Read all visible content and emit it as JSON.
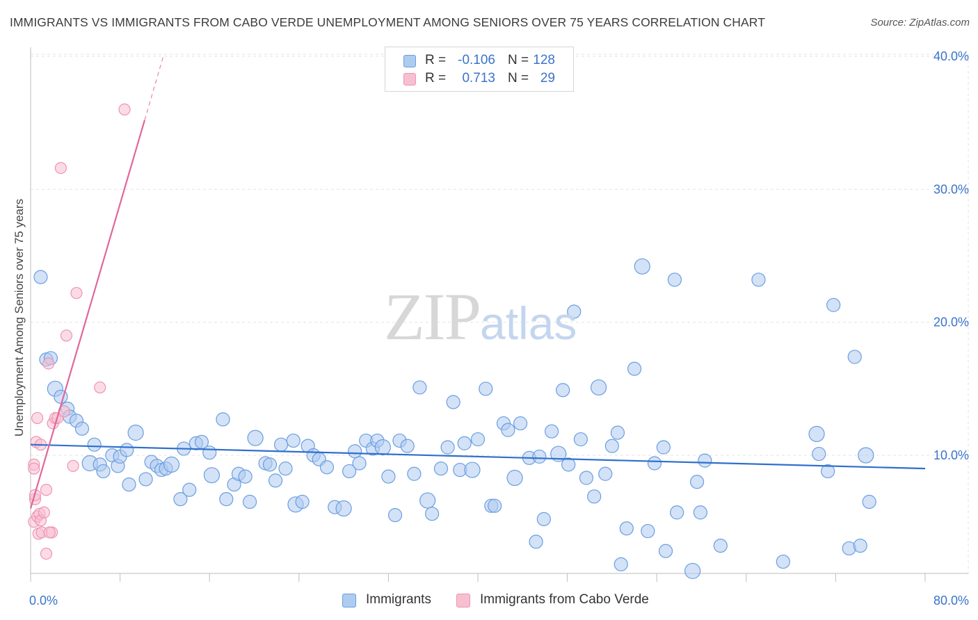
{
  "title": "IMMIGRANTS VS IMMIGRANTS FROM CABO VERDE UNEMPLOYMENT AMONG SENIORS OVER 75 YEARS CORRELATION CHART",
  "source": "Source: ZipAtlas.com",
  "watermark": {
    "zip": "ZIP",
    "atlas": "atlas"
  },
  "legend": {
    "r_label": "R =",
    "n_label": "N =",
    "items": [
      {
        "r": "-0.106",
        "n": "128"
      },
      {
        "r": "0.713",
        "n": "29"
      }
    ]
  },
  "colors": {
    "immigrants_fill": "#aecbf0",
    "immigrants_stroke": "#6a9ee0",
    "immigrants_line": "#2f6fcd",
    "caboverde_fill": "#f7c0d1",
    "caboverde_stroke": "#ee93b0",
    "caboverde_line": "#e0679a",
    "tick_label": "#3a73c9",
    "grid": "#e3e3e3"
  },
  "chart_data": {
    "type": "scatter",
    "title": "IMMIGRANTS VS IMMIGRANTS FROM CABO VERDE UNEMPLOYMENT AMONG SENIORS OVER 75 YEARS CORRELATION CHART",
    "xlabel": "",
    "ylabel": "Unemployment Among Seniors over 75 years",
    "xlim": [
      0,
      80
    ],
    "ylim": [
      0,
      42
    ],
    "x_ticks": [
      0,
      80
    ],
    "x_tick_labels": [
      "0.0%",
      "80.0%"
    ],
    "y_ticks": [
      10,
      20,
      30,
      40
    ],
    "y_tick_labels": [
      "10.0%",
      "20.0%",
      "30.0%",
      "40.0%"
    ],
    "grid": true,
    "legend_position": "bottom",
    "series": [
      {
        "name": "Immigrants",
        "points": [
          [
            0.9,
            23.4
          ],
          [
            1.4,
            17.2
          ],
          [
            1.8,
            17.3
          ],
          [
            2.2,
            15.0
          ],
          [
            2.7,
            14.4
          ],
          [
            3.3,
            13.5
          ],
          [
            3.5,
            12.9
          ],
          [
            4.1,
            12.6
          ],
          [
            4.6,
            12.0
          ],
          [
            5.7,
            10.8
          ],
          [
            5.3,
            9.4
          ],
          [
            6.2,
            9.3
          ],
          [
            6.5,
            8.8
          ],
          [
            7.3,
            10.0
          ],
          [
            7.8,
            9.2
          ],
          [
            8.0,
            9.9
          ],
          [
            8.6,
            10.4
          ],
          [
            9.4,
            11.7
          ],
          [
            8.8,
            7.8
          ],
          [
            10.3,
            8.2
          ],
          [
            10.8,
            9.5
          ],
          [
            11.3,
            9.2
          ],
          [
            11.7,
            8.9
          ],
          [
            12.1,
            9.0
          ],
          [
            12.6,
            9.3
          ],
          [
            13.4,
            6.7
          ],
          [
            13.7,
            10.5
          ],
          [
            14.2,
            7.4
          ],
          [
            14.8,
            10.9
          ],
          [
            15.3,
            11.0
          ],
          [
            16.0,
            10.2
          ],
          [
            16.2,
            8.5
          ],
          [
            17.2,
            12.7
          ],
          [
            17.5,
            6.7
          ],
          [
            18.2,
            7.8
          ],
          [
            18.6,
            8.6
          ],
          [
            19.2,
            8.4
          ],
          [
            19.6,
            6.5
          ],
          [
            20.1,
            11.3
          ],
          [
            21.0,
            9.4
          ],
          [
            21.4,
            9.3
          ],
          [
            21.9,
            8.1
          ],
          [
            22.4,
            10.8
          ],
          [
            22.8,
            9.0
          ],
          [
            23.5,
            11.1
          ],
          [
            23.7,
            6.3
          ],
          [
            24.3,
            6.5
          ],
          [
            24.8,
            10.7
          ],
          [
            25.3,
            10.0
          ],
          [
            25.8,
            9.7
          ],
          [
            26.5,
            9.1
          ],
          [
            27.2,
            6.1
          ],
          [
            28.0,
            6.0
          ],
          [
            28.5,
            8.8
          ],
          [
            29.0,
            10.3
          ],
          [
            29.4,
            9.4
          ],
          [
            30.0,
            11.1
          ],
          [
            30.6,
            10.5
          ],
          [
            31.0,
            11.1
          ],
          [
            31.5,
            10.6
          ],
          [
            32.0,
            8.4
          ],
          [
            32.6,
            5.5
          ],
          [
            33.0,
            11.1
          ],
          [
            33.7,
            10.7
          ],
          [
            34.3,
            8.6
          ],
          [
            34.8,
            15.1
          ],
          [
            35.5,
            6.6
          ],
          [
            35.9,
            5.6
          ],
          [
            36.7,
            9.0
          ],
          [
            37.3,
            10.6
          ],
          [
            37.8,
            14.0
          ],
          [
            38.4,
            8.9
          ],
          [
            38.8,
            10.9
          ],
          [
            39.5,
            8.9
          ],
          [
            40.0,
            11.2
          ],
          [
            40.7,
            15.0
          ],
          [
            41.2,
            6.2
          ],
          [
            41.5,
            6.2
          ],
          [
            42.3,
            12.4
          ],
          [
            42.7,
            11.9
          ],
          [
            43.3,
            8.3
          ],
          [
            43.8,
            12.4
          ],
          [
            44.6,
            9.8
          ],
          [
            45.2,
            3.5
          ],
          [
            45.5,
            9.9
          ],
          [
            45.9,
            5.2
          ],
          [
            46.6,
            11.8
          ],
          [
            47.2,
            10.1
          ],
          [
            47.6,
            14.9
          ],
          [
            48.1,
            9.3
          ],
          [
            48.6,
            20.8
          ],
          [
            49.2,
            11.2
          ],
          [
            49.7,
            8.3
          ],
          [
            50.4,
            6.9
          ],
          [
            50.8,
            15.1
          ],
          [
            51.4,
            8.6
          ],
          [
            52.0,
            10.7
          ],
          [
            52.5,
            11.7
          ],
          [
            52.8,
            1.8
          ],
          [
            53.3,
            4.5
          ],
          [
            54.0,
            16.5
          ],
          [
            54.7,
            24.2
          ],
          [
            55.2,
            4.3
          ],
          [
            55.8,
            9.4
          ],
          [
            56.6,
            10.6
          ],
          [
            56.8,
            2.8
          ],
          [
            57.6,
            23.2
          ],
          [
            57.8,
            5.7
          ],
          [
            59.2,
            1.3
          ],
          [
            59.6,
            8.0
          ],
          [
            59.9,
            5.7
          ],
          [
            60.3,
            9.6
          ],
          [
            61.7,
            3.2
          ],
          [
            65.1,
            23.2
          ],
          [
            67.3,
            2.0
          ],
          [
            70.3,
            11.6
          ],
          [
            70.5,
            10.1
          ],
          [
            71.3,
            8.8
          ],
          [
            71.8,
            21.3
          ],
          [
            73.2,
            3.0
          ],
          [
            73.7,
            17.4
          ],
          [
            74.2,
            3.2
          ],
          [
            74.7,
            10.0
          ],
          [
            75.0,
            6.5
          ]
        ],
        "trend": {
          "x": [
            0,
            80
          ],
          "y": [
            10.8,
            9.0
          ]
        }
      },
      {
        "name": "Immigrants from Cabo Verde",
        "points": [
          [
            0.3,
            9.3
          ],
          [
            0.3,
            5.0
          ],
          [
            0.3,
            9.0
          ],
          [
            0.4,
            6.7
          ],
          [
            0.4,
            7.0
          ],
          [
            0.5,
            11.0
          ],
          [
            0.6,
            12.8
          ],
          [
            0.6,
            5.4
          ],
          [
            0.7,
            4.1
          ],
          [
            0.8,
            5.6
          ],
          [
            0.9,
            10.8
          ],
          [
            0.9,
            5.1
          ],
          [
            1.0,
            4.2
          ],
          [
            1.2,
            5.7
          ],
          [
            1.4,
            2.6
          ],
          [
            1.4,
            7.4
          ],
          [
            1.6,
            16.9
          ],
          [
            1.9,
            4.2
          ],
          [
            2.0,
            12.4
          ],
          [
            2.2,
            12.8
          ],
          [
            2.4,
            12.8
          ],
          [
            2.7,
            31.6
          ],
          [
            3.0,
            13.3
          ],
          [
            3.2,
            19.0
          ],
          [
            3.8,
            9.2
          ],
          [
            4.1,
            22.2
          ],
          [
            6.2,
            15.1
          ],
          [
            8.4,
            36.0
          ],
          [
            1.7,
            4.2
          ]
        ],
        "trend": {
          "x": [
            0,
            10.2
          ],
          "y": [
            6.0,
            35.2
          ]
        },
        "trend_extension": {
          "x": [
            10.2,
            11.9
          ],
          "y": [
            35.2,
            40.1
          ]
        }
      }
    ]
  },
  "bottom_legend": {
    "items": [
      {
        "label": "Immigrants"
      },
      {
        "label": "Immigrants from Cabo Verde"
      }
    ]
  }
}
